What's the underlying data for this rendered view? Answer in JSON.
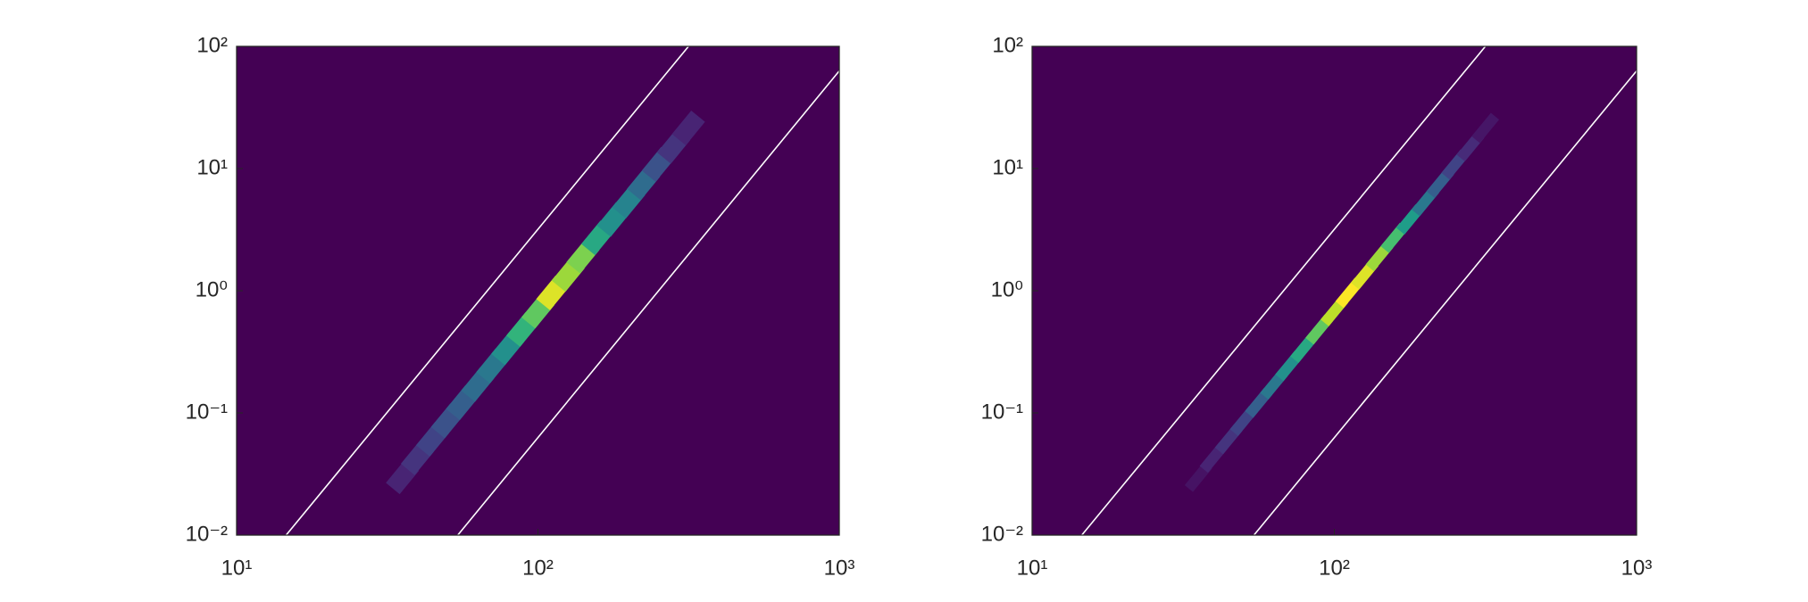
{
  "chart_data": [
    {
      "type": "heatmap",
      "xscale": "log",
      "yscale": "log",
      "colormap": "viridis",
      "background": "#440154",
      "xlim": [
        10,
        1000
      ],
      "ylim": [
        0.01,
        100
      ],
      "xticks": [
        {
          "value": 10,
          "label": "10¹"
        },
        {
          "value": 100,
          "label": "10²"
        },
        {
          "value": 1000,
          "label": "10³"
        }
      ],
      "yticks": [
        {
          "value": 0.01,
          "label": "10⁻²"
        },
        {
          "value": 0.1,
          "label": "10⁻¹"
        },
        {
          "value": 1,
          "label": "10⁰"
        },
        {
          "value": 10,
          "label": "10¹"
        },
        {
          "value": 100,
          "label": "10²"
        }
      ],
      "x": [
        35.5,
        39.8,
        44.7,
        50.1,
        56.2,
        63.1,
        70.8,
        79.4,
        89.1,
        100,
        112,
        126,
        141,
        158,
        178,
        200,
        224,
        251,
        282,
        316
      ],
      "y": [
        0.03,
        0.043,
        0.061,
        0.086,
        0.121,
        0.171,
        0.242,
        0.341,
        0.482,
        0.68,
        0.96,
        1.36,
        1.92,
        2.71,
        3.83,
        5.41,
        7.64,
        10.8,
        15.2,
        21.5
      ],
      "values": [
        0.1,
        0.15,
        0.2,
        0.25,
        0.3,
        0.35,
        0.4,
        0.5,
        0.65,
        0.75,
        0.95,
        0.85,
        0.8,
        0.6,
        0.5,
        0.45,
        0.35,
        0.25,
        0.15,
        0.1
      ],
      "lines": [
        {
          "color": "#ffffff",
          "x": [
            14.6,
            316
          ],
          "y": [
            0.01,
            100
          ]
        },
        {
          "color": "#ffffff",
          "x": [
            54.2,
            1000
          ],
          "y": [
            0.01,
            63
          ]
        }
      ]
    },
    {
      "type": "heatmap",
      "xscale": "log",
      "yscale": "log",
      "colormap": "viridis",
      "background": "#440154",
      "xlim": [
        10,
        1000
      ],
      "ylim": [
        0.01,
        100
      ],
      "xticks": [
        {
          "value": 10,
          "label": "10¹"
        },
        {
          "value": 100,
          "label": "10²"
        },
        {
          "value": 1000,
          "label": "10³"
        }
      ],
      "yticks": [
        {
          "value": 0.01,
          "label": "10⁻²"
        },
        {
          "value": 0.1,
          "label": "10⁻¹"
        },
        {
          "value": 1,
          "label": "10⁰"
        },
        {
          "value": 10,
          "label": "10¹"
        },
        {
          "value": 100,
          "label": "10²"
        }
      ],
      "x": [
        35.5,
        39.8,
        44.7,
        50.1,
        56.2,
        63.1,
        70.8,
        79.4,
        89.1,
        100,
        112,
        126,
        141,
        158,
        178,
        200,
        224,
        251,
        282,
        316
      ],
      "y": [
        0.03,
        0.043,
        0.061,
        0.086,
        0.121,
        0.171,
        0.242,
        0.341,
        0.482,
        0.68,
        0.96,
        1.36,
        1.92,
        2.71,
        3.83,
        5.41,
        7.64,
        10.8,
        15.2,
        21.5
      ],
      "values": [
        0.05,
        0.1,
        0.15,
        0.2,
        0.3,
        0.4,
        0.5,
        0.6,
        0.75,
        0.9,
        1.0,
        0.95,
        0.85,
        0.7,
        0.55,
        0.4,
        0.3,
        0.2,
        0.12,
        0.06
      ],
      "lines": [
        {
          "color": "#ffffff",
          "x": [
            14.6,
            316
          ],
          "y": [
            0.01,
            100
          ]
        },
        {
          "color": "#ffffff",
          "x": [
            54.2,
            1000
          ],
          "y": [
            0.01,
            63
          ]
        }
      ]
    }
  ]
}
